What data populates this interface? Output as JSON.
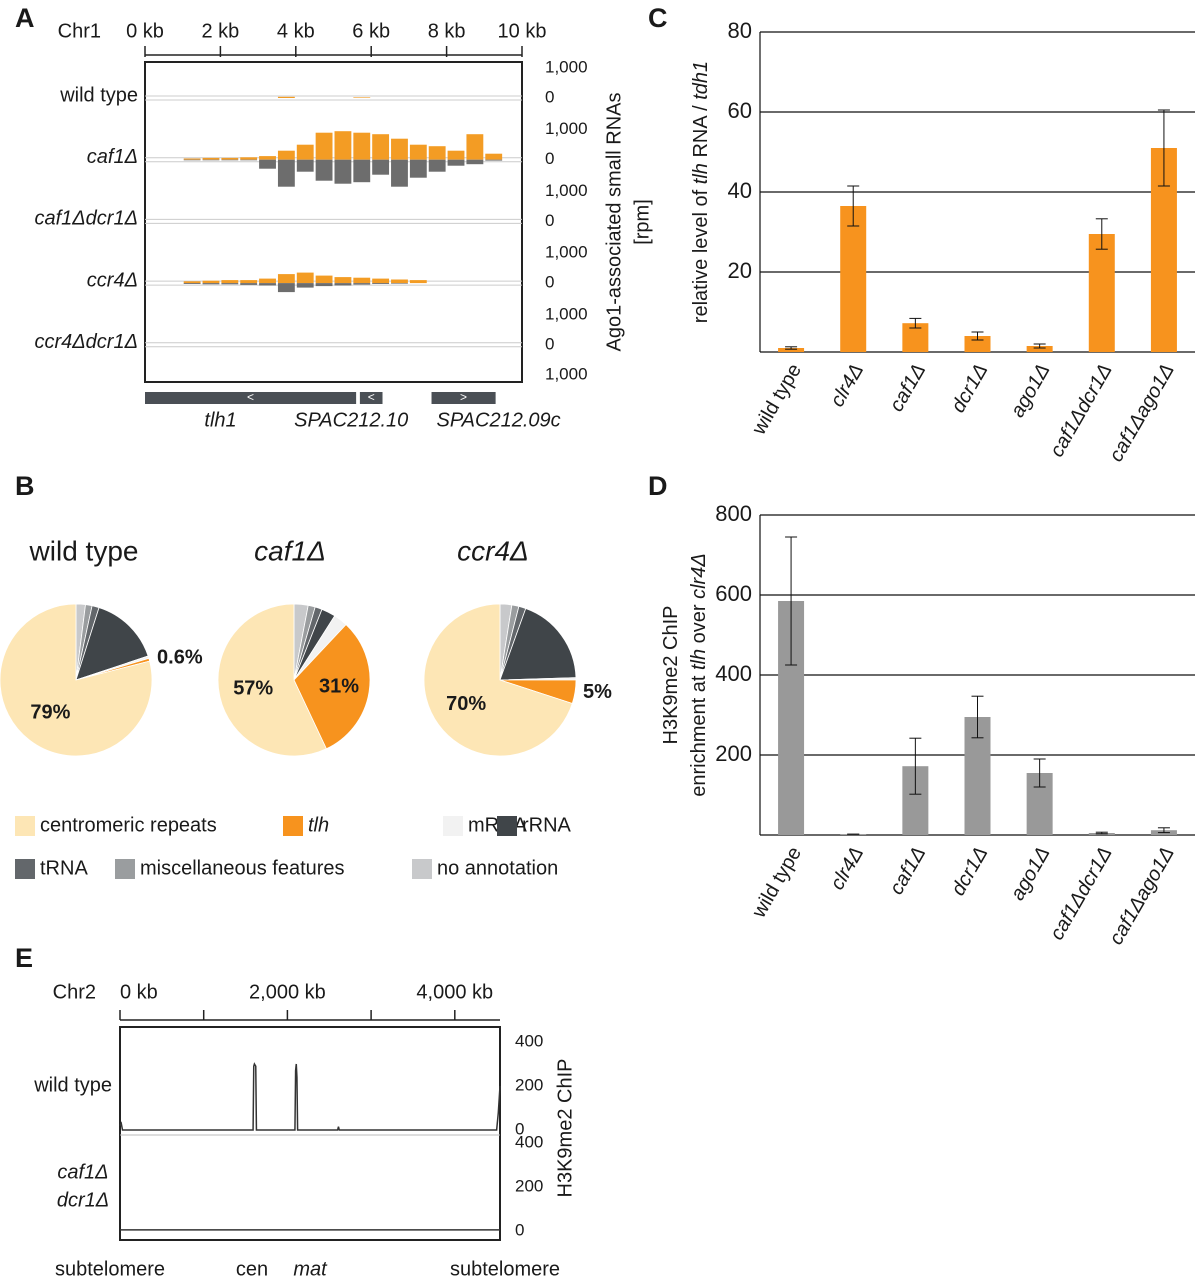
{
  "chart_data": [
    {
      "type": "track",
      "panel": "A",
      "chromosome": "Chr1",
      "xlim": [
        0,
        10
      ],
      "xticks": [
        {
          "value": 0,
          "label": "0 kb"
        },
        {
          "value": 2,
          "label": "2 kb"
        },
        {
          "value": 4,
          "label": "4 kb"
        },
        {
          "value": 6,
          "label": "6 kb"
        },
        {
          "value": 8,
          "label": "8 kb"
        },
        {
          "value": 10,
          "label": "10 kb"
        }
      ],
      "ylim": [
        -1000,
        1000
      ],
      "yticks": [
        {
          "value": 1000,
          "label": "1,000"
        },
        0,
        {
          "value": -1000,
          "label": "1,000"
        }
      ],
      "y_label": [
        "Ago1-associated small RNAs",
        "[rpm]"
      ],
      "plus_color": "#f39c24",
      "minus_color": "#6d6d6d",
      "bins": [
        0,
        0.5,
        1,
        1.5,
        2,
        2.5,
        3,
        3.5,
        4,
        4.5,
        5,
        5.5,
        6,
        6.5,
        7,
        7.5,
        8,
        8.5,
        9,
        9.5,
        10
      ],
      "tracks": [
        {
          "name": "wild type",
          "plus": [
            0,
            0,
            0,
            0,
            0,
            0,
            0,
            40,
            0,
            0,
            0,
            20,
            0,
            0,
            0,
            0,
            0,
            0,
            0,
            0
          ],
          "minus": [
            0,
            0,
            0,
            0,
            0,
            0,
            0,
            0,
            0,
            0,
            0,
            0,
            0,
            0,
            0,
            0,
            0,
            0,
            0,
            0
          ]
        },
        {
          "name": "caf1Δ",
          "plus": [
            0,
            0,
            40,
            60,
            60,
            80,
            120,
            300,
            500,
            900,
            950,
            900,
            850,
            700,
            500,
            450,
            300,
            850,
            200,
            0
          ],
          "minus": [
            0,
            0,
            -20,
            -20,
            -20,
            -20,
            -300,
            -900,
            -400,
            -700,
            -800,
            -750,
            -500,
            -900,
            -600,
            -400,
            -200,
            -150,
            -30,
            0
          ]
        },
        {
          "name": "caf1Δdcr1Δ",
          "plus": [
            0,
            0,
            0,
            0,
            0,
            0,
            0,
            0,
            0,
            0,
            0,
            0,
            0,
            0,
            0,
            0,
            0,
            0,
            0,
            0
          ],
          "minus": [
            0,
            0,
            0,
            0,
            0,
            0,
            0,
            0,
            0,
            0,
            0,
            0,
            0,
            0,
            0,
            0,
            0,
            0,
            0,
            0
          ]
        },
        {
          "name": "ccr4Δ",
          "plus": [
            0,
            0,
            60,
            80,
            100,
            100,
            150,
            300,
            350,
            250,
            200,
            180,
            150,
            120,
            100,
            0,
            0,
            0,
            0,
            0
          ],
          "minus": [
            0,
            0,
            -30,
            -40,
            -40,
            -60,
            -80,
            -300,
            -150,
            -100,
            -80,
            -50,
            -30,
            -20,
            0,
            0,
            0,
            0,
            0,
            0
          ]
        },
        {
          "name": "ccr4Δdcr1Δ",
          "plus": [
            0,
            0,
            0,
            0,
            0,
            0,
            0,
            0,
            0,
            0,
            0,
            0,
            0,
            0,
            0,
            0,
            0,
            0,
            0,
            0
          ],
          "minus": [
            0,
            0,
            0,
            0,
            0,
            0,
            0,
            0,
            0,
            0,
            0,
            0,
            0,
            0,
            0,
            0,
            0,
            0,
            0,
            0
          ]
        }
      ],
      "genes": [
        {
          "name": "tlh1",
          "start": 0,
          "end": 5.6,
          "strand": "<"
        },
        {
          "name": "SPAC212.10",
          "start": 5.7,
          "end": 6.3,
          "strand": "<"
        },
        {
          "name": "SPAC212.09c",
          "start": 7.6,
          "end": 9.3,
          "strand": ">"
        }
      ]
    },
    {
      "type": "pie",
      "panel": "B",
      "categories": [
        "centromeric repeats",
        "tlh",
        "mRNA",
        "rRNA",
        "tRNA",
        "miscellaneous features",
        "no annotation"
      ],
      "colors": [
        "#fde6b5",
        "#f7931e",
        "#f2f2f2",
        "#404549",
        "#63676b",
        "#9a9d9f",
        "#c8c9cb"
      ],
      "pies": [
        {
          "title": "wild type",
          "values": [
            79,
            0.6,
            0.5,
            15,
            1.5,
            1.4,
            2
          ],
          "value_labels": [
            "79%",
            "0.6%",
            null,
            null,
            null,
            null,
            null
          ]
        },
        {
          "title": "caf1Δ",
          "values": [
            57,
            31,
            3,
            3,
            1.5,
            1.5,
            3
          ],
          "value_labels": [
            "57%",
            "31%",
            null,
            null,
            null,
            null,
            null
          ]
        },
        {
          "title": "ccr4Δ",
          "values": [
            70,
            5,
            0.5,
            19,
            1.5,
            1.5,
            2.5
          ],
          "value_labels": [
            "70%",
            "5%",
            null,
            null,
            null,
            null,
            null
          ]
        }
      ]
    },
    {
      "type": "bar",
      "panel": "C",
      "y_label": [
        "relative level of ",
        "tlh",
        " RNA / ",
        "tdh1"
      ],
      "categories": [
        "wild type",
        "clr4Δ",
        "caf1Δ",
        "dcr1Δ",
        "ago1Δ",
        "caf1Δdcr1Δ",
        "caf1Δago1Δ"
      ],
      "values": [
        1,
        36.5,
        7.2,
        4,
        1.5,
        29.5,
        51
      ],
      "errors": [
        0.3,
        5,
        1.2,
        1,
        0.5,
        3.8,
        9.5
      ],
      "color": "#f7931e",
      "ylim": [
        0,
        80
      ],
      "yticks": [
        20,
        40,
        60,
        80
      ],
      "grid": true
    },
    {
      "type": "bar",
      "panel": "D",
      "y_label": [
        [
          "H3K9me2 ChIP"
        ],
        [
          "enrichment at ",
          "tlh",
          " over ",
          "clr4Δ"
        ]
      ],
      "categories": [
        "wild type",
        "clr4Δ",
        "caf1Δ",
        "dcr1Δ",
        "ago1Δ",
        "caf1Δdcr1Δ",
        "caf1Δago1Δ"
      ],
      "values": [
        585,
        2,
        172,
        295,
        155,
        5,
        12
      ],
      "errors": [
        160,
        0,
        70,
        52,
        35,
        2,
        6
      ],
      "color": "#999999",
      "ylim": [
        0,
        800
      ],
      "yticks": [
        200,
        400,
        600,
        800
      ],
      "grid": true
    },
    {
      "type": "line-track",
      "panel": "E",
      "chromosome": "Chr2",
      "xlim": [
        0,
        4540
      ],
      "xticks": [
        {
          "value": 0,
          "label": "0 kb"
        },
        {
          "value": 2000,
          "label": "2,000 kb"
        },
        {
          "value": 4000,
          "label": "4,000 kb"
        }
      ],
      "minor_xticks": [
        1000,
        3000
      ],
      "ylim": [
        0,
        400
      ],
      "yticks": [
        400,
        200,
        0
      ],
      "y_label": "H3K9me2 ChIP",
      "color": "#333333",
      "tracks": [
        {
          "name": [
            "wild type"
          ],
          "x": [
            0,
            15,
            30,
            1590,
            1598,
            1606,
            1614,
            1622,
            1630,
            2090,
            2098,
            2106,
            2114,
            2122,
            2600,
            2610,
            2620,
            4500,
            4520,
            4540
          ],
          "values": [
            20,
            30,
            0,
            0,
            290,
            300,
            295,
            290,
            0,
            0,
            270,
            300,
            240,
            0,
            0,
            15,
            0,
            0,
            80,
            200
          ]
        },
        {
          "name": [
            "caf1Δ",
            "dcr1Δ"
          ],
          "x": [
            0,
            4540
          ],
          "values": [
            5,
            5
          ]
        }
      ],
      "landmarks": [
        "subtelomere",
        "cen",
        "mat",
        "subtelomere"
      ]
    }
  ]
}
